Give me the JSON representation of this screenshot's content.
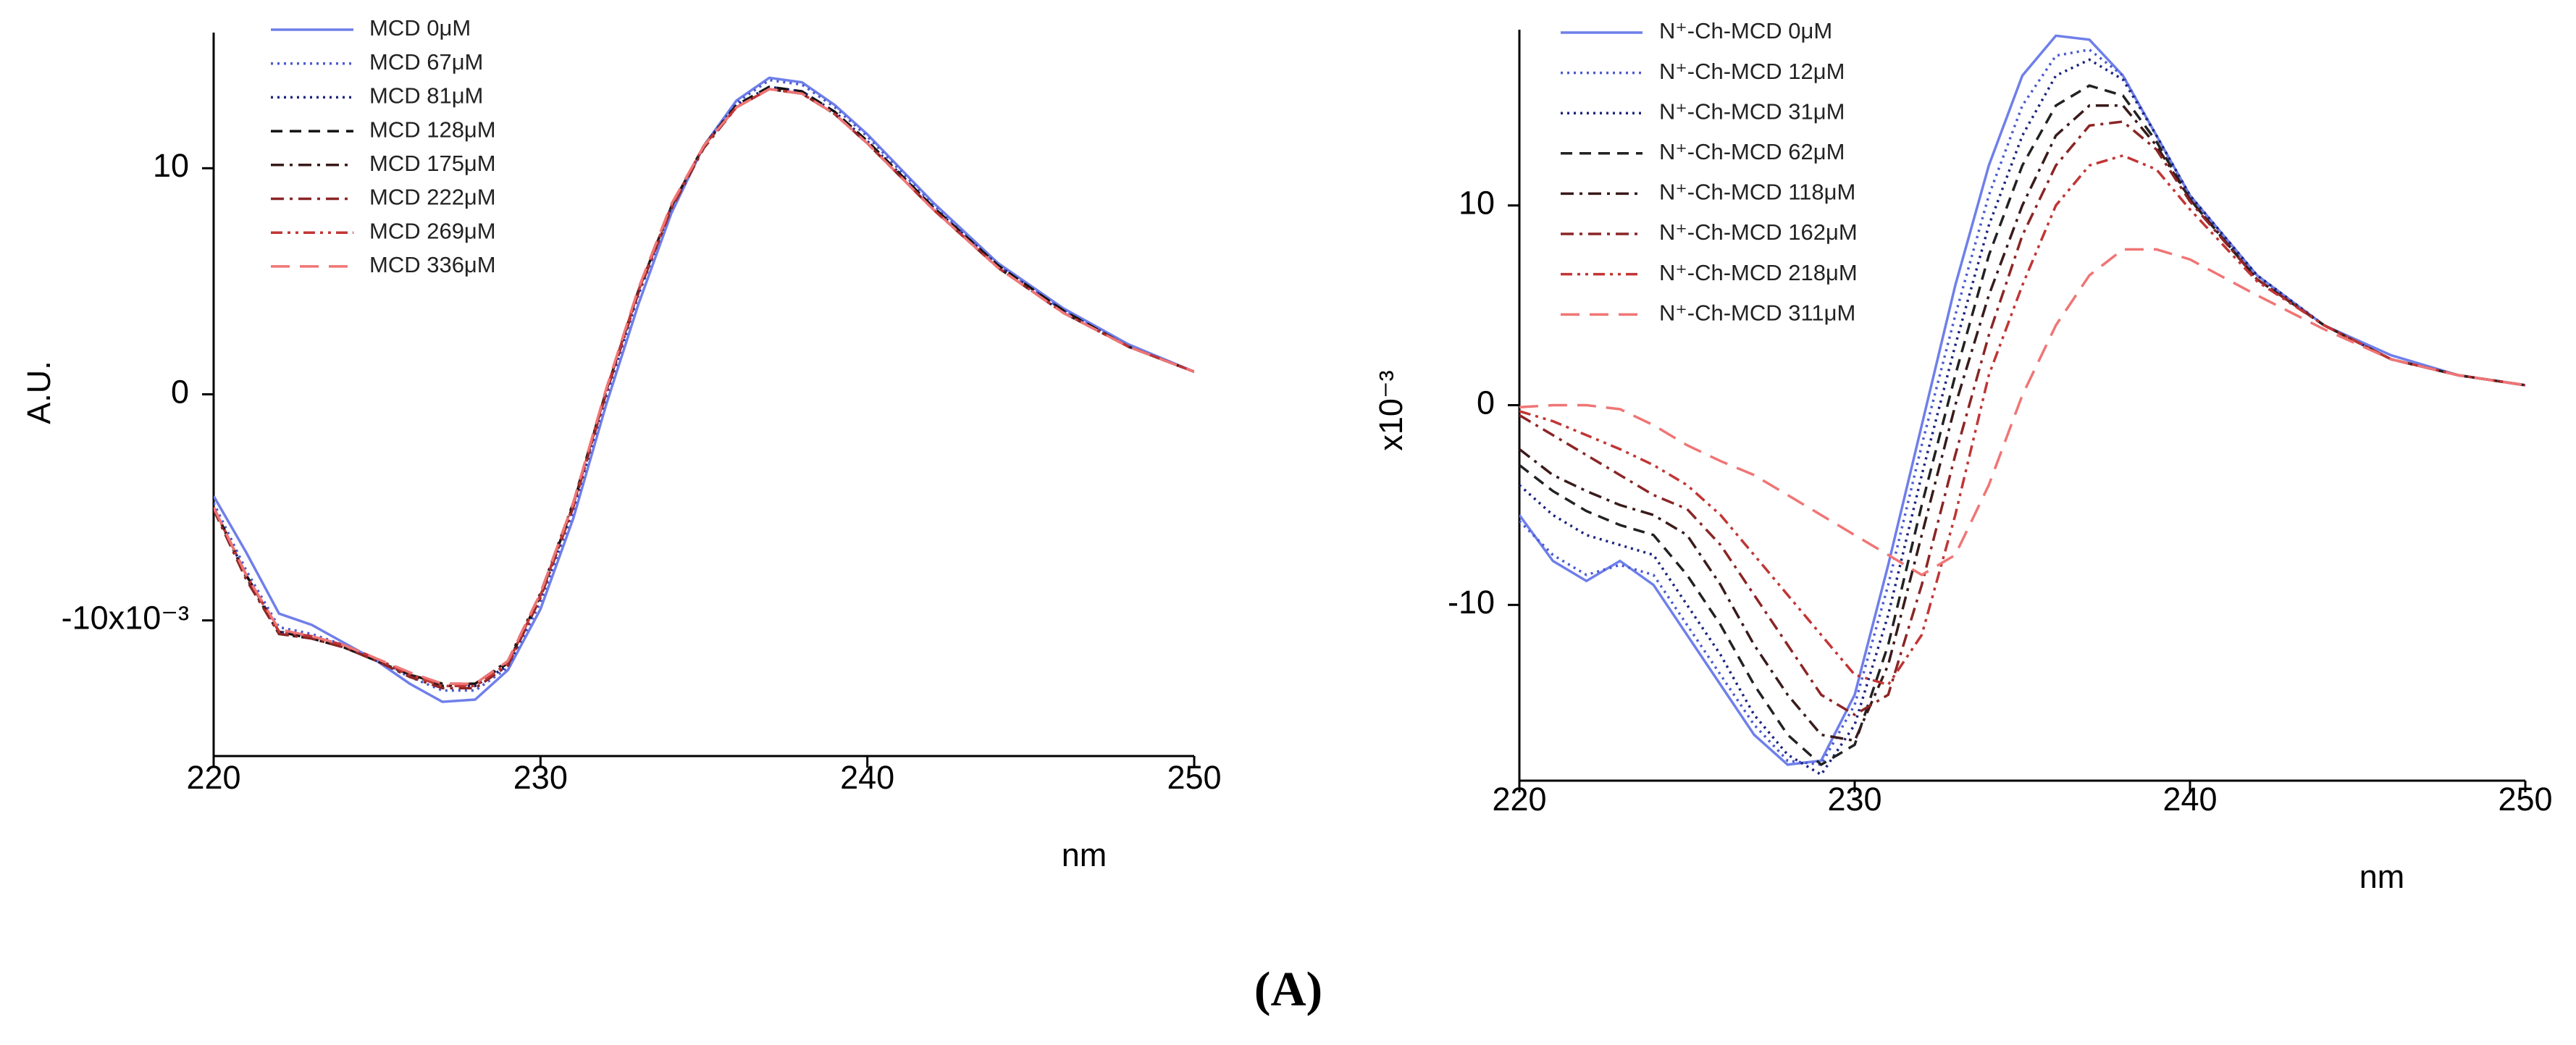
{
  "chart_data": [
    {
      "type": "line",
      "ylabel": "A.U.",
      "xlabel": "nm",
      "x": [
        220,
        221,
        222,
        223,
        224,
        225,
        226,
        227,
        228,
        229,
        230,
        231,
        232,
        233,
        234,
        235,
        236,
        237,
        238,
        239,
        240,
        242,
        244,
        246,
        248,
        250
      ],
      "xlim": [
        220,
        250
      ],
      "xticks": [
        220,
        230,
        240,
        250
      ],
      "ylim": [
        -16,
        16
      ],
      "yticks": [
        {
          "value": -10,
          "label": "-10x10⁻³"
        },
        0,
        10
      ],
      "series": [
        {
          "name": "MCD 0μM",
          "color": "#6f7fea",
          "dash": "solid",
          "values": [
            -4.5,
            -7,
            -9.7,
            -10.2,
            -11,
            -11.8,
            -12.8,
            -13.6,
            -13.5,
            -12.2,
            -9.5,
            -5.5,
            -0.5,
            4,
            8,
            11,
            13,
            14,
            13.8,
            12.8,
            11.5,
            8.5,
            5.8,
            3.8,
            2.2,
            1
          ]
        },
        {
          "name": "MCD 67μM",
          "color": "#4a5ad0",
          "dash": "dotted",
          "values": [
            -4.8,
            -7.8,
            -10.3,
            -10.6,
            -11.1,
            -11.8,
            -12.5,
            -13.1,
            -13.1,
            -12.1,
            -9.2,
            -5.2,
            -0.2,
            4.4,
            8.2,
            11,
            12.9,
            13.9,
            13.7,
            12.7,
            11.4,
            8.4,
            5.7,
            3.7,
            2.1,
            1
          ]
        },
        {
          "name": "MCD 81μM",
          "color": "#1a237e",
          "dash": "dotted",
          "values": [
            -5,
            -8,
            -10.5,
            -10.7,
            -11.2,
            -11.8,
            -12.4,
            -12.9,
            -12.9,
            -12,
            -9,
            -5,
            0,
            4.5,
            8.3,
            11,
            12.8,
            13.6,
            13.4,
            12.5,
            11.2,
            8.3,
            5.7,
            3.7,
            2.1,
            1
          ]
        },
        {
          "name": "MCD 128μM",
          "color": "#111111",
          "dash": "dashed",
          "values": [
            -5,
            -8,
            -10.5,
            -10.8,
            -11.2,
            -11.8,
            -12.4,
            -12.8,
            -12.8,
            -11.9,
            -8.9,
            -4.9,
            0.1,
            4.6,
            8.3,
            11,
            12.8,
            13.6,
            13.4,
            12.5,
            11.2,
            8.3,
            5.7,
            3.7,
            2.1,
            1
          ]
        },
        {
          "name": "MCD 175μM",
          "color": "#3a1a1a",
          "dash": "dashdot",
          "values": [
            -5,
            -8.1,
            -10.6,
            -10.8,
            -11.2,
            -11.8,
            -12.4,
            -12.9,
            -12.8,
            -11.8,
            -8.8,
            -4.8,
            0.1,
            4.6,
            8.3,
            11,
            12.7,
            13.5,
            13.3,
            12.4,
            11.1,
            8.2,
            5.6,
            3.6,
            2.1,
            1
          ]
        },
        {
          "name": "MCD 222μM",
          "color": "#8b2525",
          "dash": "dashdot",
          "values": [
            -5.1,
            -8.2,
            -10.6,
            -10.8,
            -11.2,
            -11.8,
            -12.5,
            -13,
            -13,
            -12,
            -9,
            -5,
            0,
            4.5,
            8.2,
            10.9,
            12.7,
            13.5,
            13.3,
            12.4,
            11.1,
            8.2,
            5.6,
            3.6,
            2.1,
            1
          ]
        },
        {
          "name": "MCD 269μM",
          "color": "#c23535",
          "dash": "dashdotdot",
          "values": [
            -5,
            -8,
            -10.5,
            -10.7,
            -11.1,
            -11.7,
            -12.4,
            -12.9,
            -12.9,
            -11.9,
            -8.9,
            -4.9,
            0.1,
            4.6,
            8.3,
            11,
            12.7,
            13.5,
            13.3,
            12.4,
            11.1,
            8.2,
            5.6,
            3.6,
            2.1,
            1
          ]
        },
        {
          "name": "MCD 336μM",
          "color": "#f07575",
          "dash": "longdash",
          "values": [
            -5,
            -8,
            -10.4,
            -10.7,
            -11.1,
            -11.7,
            -12.3,
            -12.8,
            -12.8,
            -11.8,
            -8.8,
            -4.8,
            0.2,
            4.7,
            8.4,
            11,
            12.7,
            13.5,
            13.3,
            12.4,
            11.1,
            8.2,
            5.6,
            3.6,
            2.1,
            1
          ]
        }
      ]
    },
    {
      "type": "line",
      "ylabel": "x10⁻³",
      "xlabel": "nm",
      "x": [
        220,
        221,
        222,
        223,
        224,
        225,
        226,
        227,
        228,
        229,
        230,
        231,
        232,
        233,
        234,
        235,
        236,
        237,
        238,
        239,
        240,
        242,
        244,
        246,
        248,
        250
      ],
      "xlim": [
        220,
        250
      ],
      "xticks": [
        220,
        230,
        240,
        250
      ],
      "ylim": [
        -18.8,
        18.8
      ],
      "yticks": [
        -10,
        0,
        10
      ],
      "series": [
        {
          "name": "N⁺-Ch-MCD 0μM",
          "color": "#6f7fea",
          "dash": "solid",
          "values": [
            -5.5,
            -7.8,
            -8.8,
            -7.8,
            -9,
            -11.5,
            -14,
            -16.5,
            -18,
            -17.8,
            -14.5,
            -8,
            -1,
            6,
            12,
            16.5,
            18.5,
            18.3,
            16.5,
            13.5,
            10.5,
            6.5,
            4,
            2.5,
            1.5,
            1
          ]
        },
        {
          "name": "N⁺-Ch-MCD 12μM",
          "color": "#4a5ad0",
          "dash": "dotted",
          "values": [
            -5.8,
            -7.5,
            -8.5,
            -8,
            -8.5,
            -11,
            -13.5,
            -16,
            -17.8,
            -18,
            -15,
            -9,
            -2,
            4.5,
            10.5,
            15,
            17.5,
            17.8,
            16.5,
            13.5,
            10.5,
            6.5,
            4,
            2.3,
            1.5,
            1
          ]
        },
        {
          "name": "N⁺-Ch-MCD 31μM",
          "color": "#1a237e",
          "dash": "dotted",
          "values": [
            -4,
            -5.5,
            -6.5,
            -7,
            -7.5,
            -10,
            -12.5,
            -15.5,
            -17.5,
            -18.5,
            -16,
            -10.5,
            -3.5,
            3,
            9,
            13.5,
            16.5,
            17.3,
            16.3,
            13.5,
            10.5,
            6.5,
            4,
            2.3,
            1.5,
            1
          ]
        },
        {
          "name": "N⁺-Ch-MCD 62μM",
          "color": "#222222",
          "dash": "dashed",
          "values": [
            -3,
            -4.3,
            -5.3,
            -6,
            -6.5,
            -8.5,
            -11,
            -14,
            -16.5,
            -18,
            -17,
            -12,
            -5,
            1.5,
            7.5,
            12,
            15,
            16,
            15.5,
            13.2,
            10.3,
            6.3,
            4,
            2.3,
            1.5,
            1
          ]
        },
        {
          "name": "N⁺-Ch-MCD 118μM",
          "color": "#3a1a1a",
          "dash": "dashdot",
          "values": [
            -2.2,
            -3.5,
            -4.3,
            -5,
            -5.5,
            -6.5,
            -9,
            -12,
            -14.5,
            -16.5,
            -16.8,
            -13,
            -6.5,
            0,
            5.5,
            10,
            13.5,
            15,
            15,
            13,
            10.3,
            6.3,
            4,
            2.3,
            1.5,
            1
          ]
        },
        {
          "name": "N⁺-Ch-MCD 162μM",
          "color": "#8b2525",
          "dash": "dashdot",
          "values": [
            -0.5,
            -1.5,
            -2.5,
            -3.5,
            -4.5,
            -5.2,
            -7,
            -9.5,
            -12,
            -14.5,
            -15.5,
            -14.5,
            -9,
            -2.5,
            3.5,
            8.5,
            12,
            14,
            14.2,
            12.8,
            10.2,
            6.3,
            4,
            2.3,
            1.5,
            1
          ]
        },
        {
          "name": "N⁺-Ch-MCD 218μM",
          "color": "#c23535",
          "dash": "dashdotdot",
          "values": [
            -0.3,
            -0.8,
            -1.5,
            -2.2,
            -3,
            -4,
            -5.5,
            -7.5,
            -9.5,
            -11.5,
            -13.5,
            -14,
            -11.5,
            -5.5,
            1.5,
            6,
            10,
            12,
            12.5,
            11.8,
            9.8,
            6.2,
            4,
            2.3,
            1.5,
            1
          ]
        },
        {
          "name": "N⁺-Ch-MCD 311μM",
          "color": "#f07575",
          "dash": "longdash",
          "values": [
            -0.1,
            0,
            0,
            -0.2,
            -1,
            -2,
            -2.8,
            -3.5,
            -4.5,
            -5.5,
            -6.5,
            -7.5,
            -8.5,
            -7.5,
            -4,
            0.5,
            4,
            6.5,
            7.8,
            7.8,
            7.3,
            5.5,
            3.8,
            2.3,
            1.5,
            1
          ]
        }
      ]
    }
  ],
  "caption": "(A)"
}
